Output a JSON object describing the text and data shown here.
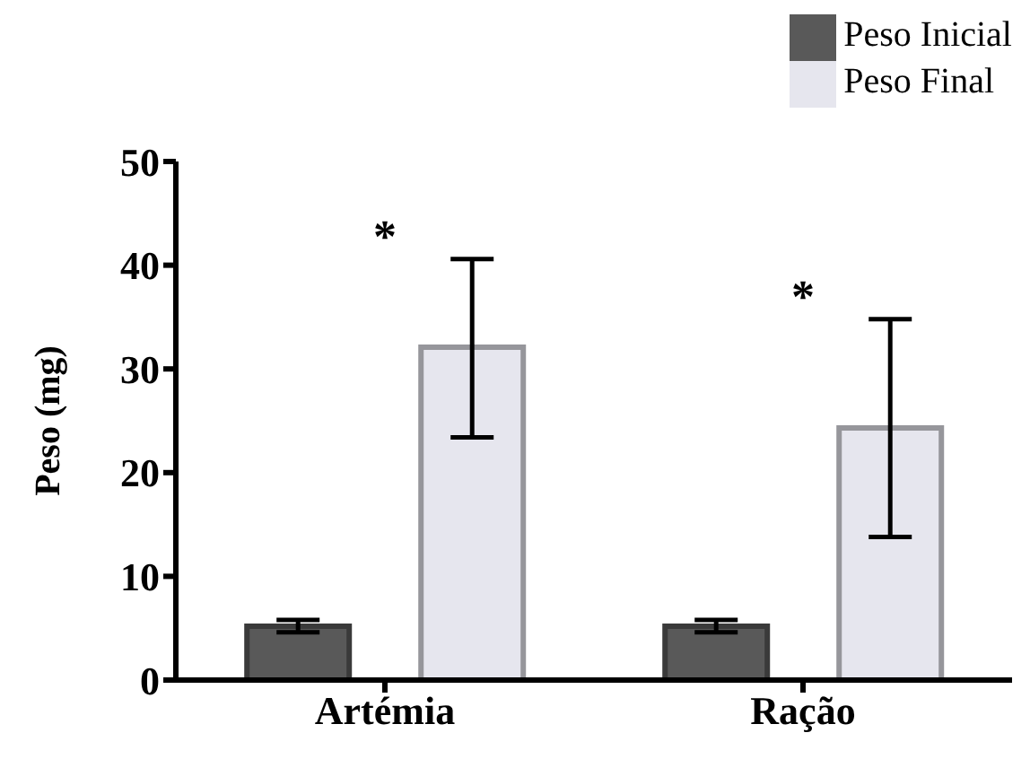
{
  "chart_data": {
    "type": "bar",
    "ylabel": "Peso (mg)",
    "categories": [
      "Artémia",
      "Ração"
    ],
    "series": [
      {
        "name": "Peso Inicial",
        "color": "#595959",
        "values": [
          5.2,
          5.2
        ],
        "errors": [
          [
            4.6,
            5.8
          ],
          [
            4.6,
            5.8
          ]
        ]
      },
      {
        "name": "Peso Final",
        "color": "#e6e6ee",
        "values": [
          32.1,
          24.3
        ],
        "errors": [
          [
            23.4,
            40.6
          ],
          [
            13.8,
            34.8
          ]
        ]
      }
    ],
    "ylim": [
      0,
      50
    ],
    "yticks": [
      0,
      10,
      20,
      30,
      40,
      50
    ],
    "grid": false,
    "legend": "top right",
    "annotations": [
      "*",
      "*"
    ]
  }
}
